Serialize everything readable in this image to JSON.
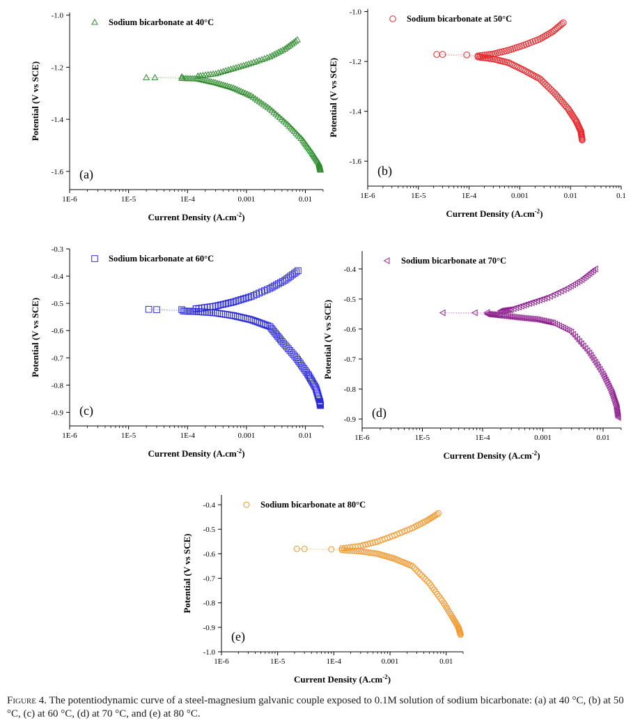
{
  "figure_caption": {
    "label": "Figure 4.",
    "text": "The potentiodynamic curve of a steel-magnesium galvanic couple exposed to 0.1M solution of sodium bicarbonate: (a) at 40 °C, (b) at 50 °C, (c) at 60 °C, (d) at 70 °C, and (e) at 80 °C."
  },
  "chart_data": [
    {
      "panel": "(a)",
      "type": "scatter",
      "x_scale": "log",
      "xlabel": "Current Density (A.cm-2)",
      "ylabel": "Potential (V vs SCE)",
      "xticks": [
        "1E-6",
        "1E-5",
        "1E-4",
        "0.001",
        "0.01"
      ],
      "yticks": [
        "-1.0",
        "-1.2",
        "-1.4",
        "-1.6"
      ],
      "xlim": [
        1e-06,
        0.02
      ],
      "ylim": [
        -1.67,
        -0.99
      ],
      "legend": "Sodium bicarbonate at 40°C",
      "legend_position": "top-left",
      "marker": "triangle",
      "color": "#2e8b2e",
      "ecorr": -1.24,
      "anodic": [
        [
          2e-05,
          -1.24
        ],
        [
          2.8e-05,
          -1.24
        ],
        [
          8e-05,
          -1.237
        ],
        [
          0.00015,
          -1.234
        ],
        [
          0.0003,
          -1.225
        ],
        [
          0.0006,
          -1.205
        ],
        [
          0.0012,
          -1.185
        ],
        [
          0.0025,
          -1.16
        ],
        [
          0.0045,
          -1.13
        ],
        [
          0.0073,
          -1.095
        ]
      ],
      "cathodic": [
        [
          8e-05,
          -1.243
        ],
        [
          0.00015,
          -1.245
        ],
        [
          0.0003,
          -1.26
        ],
        [
          0.0006,
          -1.28
        ],
        [
          0.0012,
          -1.31
        ],
        [
          0.0025,
          -1.36
        ],
        [
          0.005,
          -1.42
        ],
        [
          0.009,
          -1.48
        ],
        [
          0.013,
          -1.53
        ],
        [
          0.017,
          -1.57
        ],
        [
          0.018,
          -1.595
        ]
      ]
    },
    {
      "panel": "(b)",
      "type": "scatter",
      "x_scale": "log",
      "xlabel": "Current Density (A.cm-2)",
      "ylabel": "Potential (V vs SCE)",
      "xticks": [
        "1E-6",
        "1E-5",
        "1E-4",
        "0.001",
        "0.01",
        "0.1"
      ],
      "yticks": [
        "-1.0",
        "-1.2",
        "-1.4",
        "-1.6"
      ],
      "xlim": [
        1e-06,
        0.1
      ],
      "ylim": [
        -1.7,
        -0.99
      ],
      "legend": "Sodium bicarbonate at 50°C",
      "legend_position": "top-left",
      "marker": "circle",
      "color": "#e8262a",
      "ecorr": -1.175,
      "anodic": [
        [
          2.3e-05,
          -1.172
        ],
        [
          3e-05,
          -1.172
        ],
        [
          9e-05,
          -1.174
        ],
        [
          0.00015,
          -1.178
        ],
        [
          0.0003,
          -1.17
        ],
        [
          0.0006,
          -1.155
        ],
        [
          0.0012,
          -1.135
        ],
        [
          0.0025,
          -1.11
        ],
        [
          0.0045,
          -1.08
        ],
        [
          0.0072,
          -1.045
        ]
      ],
      "cathodic": [
        [
          0.00015,
          -1.182
        ],
        [
          0.0003,
          -1.19
        ],
        [
          0.0006,
          -1.205
        ],
        [
          0.0012,
          -1.235
        ],
        [
          0.0025,
          -1.27
        ],
        [
          0.005,
          -1.33
        ],
        [
          0.009,
          -1.39
        ],
        [
          0.013,
          -1.44
        ],
        [
          0.016,
          -1.48
        ],
        [
          0.017,
          -1.515
        ]
      ]
    },
    {
      "panel": "(c)",
      "type": "scatter",
      "x_scale": "log",
      "xlabel": "Current Density (A.cm-2)",
      "ylabel": "Potential (V vs SCE)",
      "xticks": [
        "1E-6",
        "1E-5",
        "1E-4",
        "0.001",
        "0.01"
      ],
      "yticks": [
        "-0.3",
        "-0.4",
        "-0.5",
        "-0.6",
        "-0.7",
        "-0.8",
        "-0.9"
      ],
      "xlim": [
        1e-06,
        0.02
      ],
      "ylim": [
        -0.95,
        -0.3
      ],
      "legend": "Sodium bicarbonate at 60°C",
      "legend_position": "top-left",
      "marker": "square",
      "color": "#2b2bdc",
      "ecorr": -0.522,
      "anodic": [
        [
          2.2e-05,
          -0.522
        ],
        [
          3e-05,
          -0.523
        ],
        [
          8e-05,
          -0.523
        ],
        [
          0.00014,
          -0.52
        ],
        [
          0.0003,
          -0.51
        ],
        [
          0.0006,
          -0.495
        ],
        [
          0.0012,
          -0.475
        ],
        [
          0.0025,
          -0.445
        ],
        [
          0.0045,
          -0.415
        ],
        [
          0.0075,
          -0.38
        ]
      ],
      "cathodic": [
        [
          8.5e-05,
          -0.528
        ],
        [
          0.00014,
          -0.53
        ],
        [
          0.0003,
          -0.535
        ],
        [
          0.0006,
          -0.545
        ],
        [
          0.0012,
          -0.56
        ],
        [
          0.0025,
          -0.585
        ],
        [
          0.004,
          -0.64
        ],
        [
          0.007,
          -0.7
        ],
        [
          0.011,
          -0.76
        ],
        [
          0.015,
          -0.81
        ],
        [
          0.0175,
          -0.86
        ],
        [
          0.018,
          -0.875
        ]
      ]
    },
    {
      "panel": "(d)",
      "type": "scatter",
      "x_scale": "log",
      "xlabel": "Current Density (A.cm-2)",
      "ylabel": "Potential (V vs SCE)",
      "xticks": [
        "1E-6",
        "1E-5",
        "1E-4",
        "0.001",
        "0.01"
      ],
      "yticks": [
        "-0.4",
        "-0.5",
        "-0.6",
        "-0.7",
        "-0.8",
        "-0.9"
      ],
      "xlim": [
        1e-06,
        0.02
      ],
      "ylim": [
        -0.93,
        -0.34
      ],
      "legend": "Sodium bicarbonate at 70°C",
      "legend_position": "top-left",
      "marker": "triangle-left",
      "color": "#8e1f8e",
      "ecorr": -0.545,
      "anodic": [
        [
          2.2e-05,
          -0.546
        ],
        [
          7.5e-05,
          -0.546
        ],
        [
          0.00012,
          -0.545
        ],
        [
          0.0002,
          -0.54
        ],
        [
          0.0003,
          -0.535
        ],
        [
          0.0006,
          -0.515
        ],
        [
          0.0012,
          -0.495
        ],
        [
          0.0025,
          -0.465
        ],
        [
          0.0045,
          -0.435
        ],
        [
          0.0075,
          -0.4
        ]
      ],
      "cathodic": [
        [
          0.00012,
          -0.55
        ],
        [
          0.0002,
          -0.555
        ],
        [
          0.0004,
          -0.562
        ],
        [
          0.0008,
          -0.568
        ],
        [
          0.0015,
          -0.58
        ],
        [
          0.003,
          -0.61
        ],
        [
          0.006,
          -0.68
        ],
        [
          0.01,
          -0.75
        ],
        [
          0.014,
          -0.81
        ],
        [
          0.017,
          -0.86
        ],
        [
          0.018,
          -0.895
        ]
      ]
    },
    {
      "panel": "(e)",
      "type": "scatter",
      "x_scale": "log",
      "xlabel": "Current Density (A.cm-2)",
      "ylabel": "Potential (V vs SCE)",
      "xticks": [
        "1E-6",
        "1E-5",
        "1E-4",
        "0.001",
        "0.01"
      ],
      "yticks": [
        "-0.4",
        "-0.5",
        "-0.6",
        "-0.7",
        "-0.8",
        "-0.9",
        "-1.0"
      ],
      "xlim": [
        1e-06,
        0.02
      ],
      "ylim": [
        -1.0,
        -0.36
      ],
      "legend": "Sodium bicarbonate at 80°C",
      "legend_position": "top-left",
      "marker": "hexagon",
      "color": "#f39a30",
      "ecorr": -0.58,
      "anodic": [
        [
          2.2e-05,
          -0.58
        ],
        [
          3e-05,
          -0.58
        ],
        [
          9e-05,
          -0.582
        ],
        [
          0.00014,
          -0.578
        ],
        [
          0.0003,
          -0.568
        ],
        [
          0.0006,
          -0.55
        ],
        [
          0.0012,
          -0.525
        ],
        [
          0.0025,
          -0.495
        ],
        [
          0.0045,
          -0.465
        ],
        [
          0.0073,
          -0.435
        ]
      ],
      "cathodic": [
        [
          0.00014,
          -0.585
        ],
        [
          0.0003,
          -0.59
        ],
        [
          0.0006,
          -0.6
        ],
        [
          0.0012,
          -0.62
        ],
        [
          0.0025,
          -0.65
        ],
        [
          0.005,
          -0.72
        ],
        [
          0.009,
          -0.8
        ],
        [
          0.013,
          -0.86
        ],
        [
          0.0165,
          -0.9
        ],
        [
          0.018,
          -0.93
        ]
      ]
    }
  ]
}
